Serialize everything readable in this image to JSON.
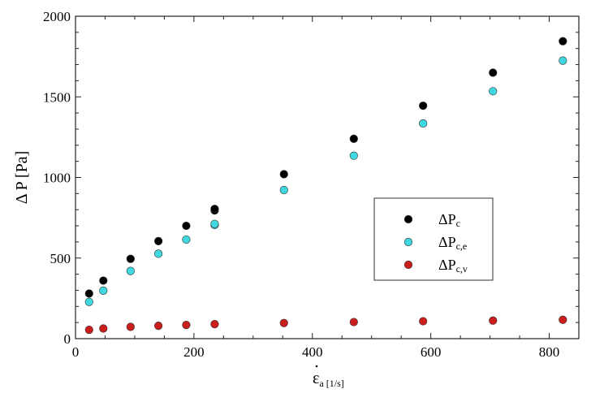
{
  "chart_data": {
    "type": "scatter",
    "ylabel": "Δ P [Pa]",
    "xlabel": {
      "main": "ε",
      "sub": "a [1/s]"
    },
    "xlim": [
      0,
      850
    ],
    "ylim": [
      0,
      2000
    ],
    "xticks": [
      0,
      200,
      400,
      600,
      800
    ],
    "yticks": [
      0,
      500,
      1000,
      1500,
      2000
    ],
    "grid": false,
    "legend_position": "center-right",
    "series": [
      {
        "name": "ΔPc",
        "name_main": "ΔP",
        "name_sub": "c",
        "color": "#000000",
        "points": [
          [
            23,
            280
          ],
          [
            47,
            360
          ],
          [
            93,
            495
          ],
          [
            140,
            605
          ],
          [
            187,
            700
          ],
          [
            235,
            795
          ],
          [
            235,
            805
          ],
          [
            352,
            1020
          ],
          [
            470,
            1240
          ],
          [
            587,
            1445
          ],
          [
            705,
            1650
          ],
          [
            823,
            1845
          ]
        ]
      },
      {
        "name": "ΔPc,e",
        "name_main": "ΔP",
        "name_sub": "c,e",
        "color": "#3fd8e0",
        "points": [
          [
            23,
            228
          ],
          [
            47,
            298
          ],
          [
            93,
            420
          ],
          [
            140,
            527
          ],
          [
            187,
            615
          ],
          [
            235,
            705
          ],
          [
            235,
            712
          ],
          [
            352,
            922
          ],
          [
            470,
            1135
          ],
          [
            587,
            1335
          ],
          [
            705,
            1535
          ],
          [
            823,
            1725
          ]
        ]
      },
      {
        "name": "ΔPc,v",
        "name_main": "ΔP",
        "name_sub": "c,v",
        "color": "#cc1d1d",
        "points": [
          [
            23,
            55
          ],
          [
            47,
            63
          ],
          [
            93,
            73
          ],
          [
            140,
            80
          ],
          [
            187,
            85
          ],
          [
            235,
            90
          ],
          [
            352,
            97
          ],
          [
            470,
            103
          ],
          [
            587,
            108
          ],
          [
            705,
            112
          ],
          [
            823,
            117
          ]
        ]
      }
    ]
  }
}
